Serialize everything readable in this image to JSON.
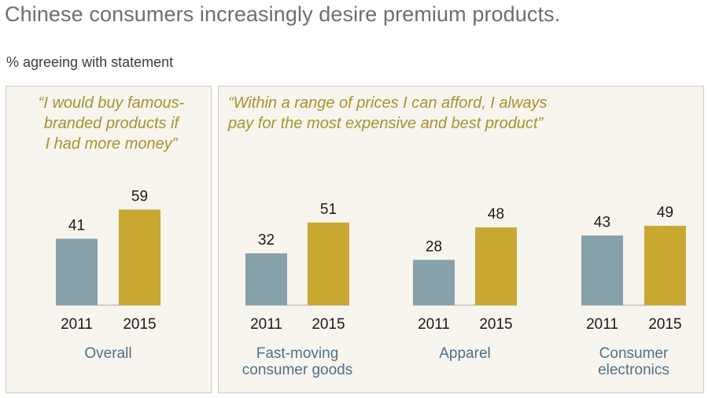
{
  "title": "Chinese consumers increasingly desire premium products.",
  "subtitle": "% agreeing with statement",
  "quotes": {
    "left": "“I would buy famous-\nbranded products if\nI had more money”",
    "right": "“Within a range of prices I can afford, I always\n  pay for the most expensive and best product”"
  },
  "colors": {
    "y2011": "#86a0ac",
    "y2015": "#c9a832",
    "quote": "#a8922e",
    "category": "#4f6f87"
  },
  "chart_data": {
    "type": "bar",
    "series": [
      {
        "name": "2011",
        "values": [
          41,
          32,
          28,
          43
        ]
      },
      {
        "name": "2015",
        "values": [
          59,
          51,
          48,
          49
        ]
      }
    ],
    "groups": [
      {
        "category": [
          "Overall"
        ],
        "years": [
          "2011",
          "2015"
        ],
        "values": [
          41,
          59
        ]
      },
      {
        "category": [
          "Fast-moving",
          "consumer goods"
        ],
        "years": [
          "2011",
          "2015"
        ],
        "values": [
          32,
          51
        ]
      },
      {
        "category": [
          "Apparel"
        ],
        "years": [
          "2011",
          "2015"
        ],
        "values": [
          28,
          48
        ]
      },
      {
        "category": [
          "Consumer",
          "electronics"
        ],
        "years": [
          "2011",
          "2015"
        ],
        "values": [
          43,
          49
        ]
      }
    ]
  }
}
